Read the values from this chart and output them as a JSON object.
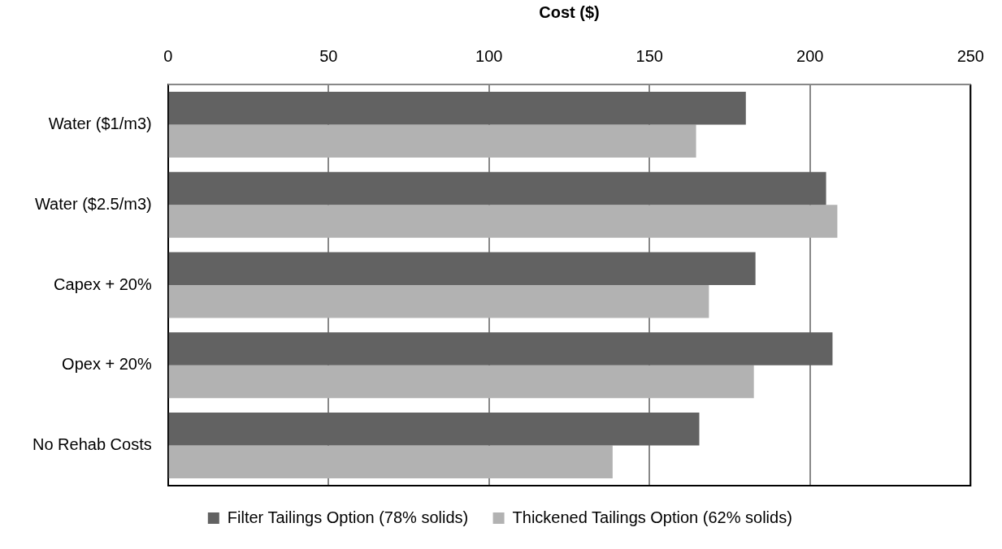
{
  "chart_data": {
    "type": "bar",
    "orientation": "horizontal",
    "xlabel": "Cost ($)",
    "categories": [
      "Water ($1/m3)",
      "Water ($2.5/m3)",
      "Capex + 20%",
      "Opex + 20%",
      "No Rehab Costs"
    ],
    "series": [
      {
        "name": "Filter Tailings Option (78% solids)",
        "color": "#626262",
        "values": [
          180,
          205,
          183,
          207,
          165.5
        ]
      },
      {
        "name": "Thickened Tailings Option (62% solids)",
        "color": "#b2b2b2",
        "values": [
          164.5,
          208.5,
          168.5,
          182.5,
          138.5
        ]
      }
    ],
    "xlim": [
      0,
      250
    ],
    "xticks": [
      0,
      50,
      100,
      150,
      200,
      250
    ],
    "grid": "x",
    "legend": "bottom"
  }
}
